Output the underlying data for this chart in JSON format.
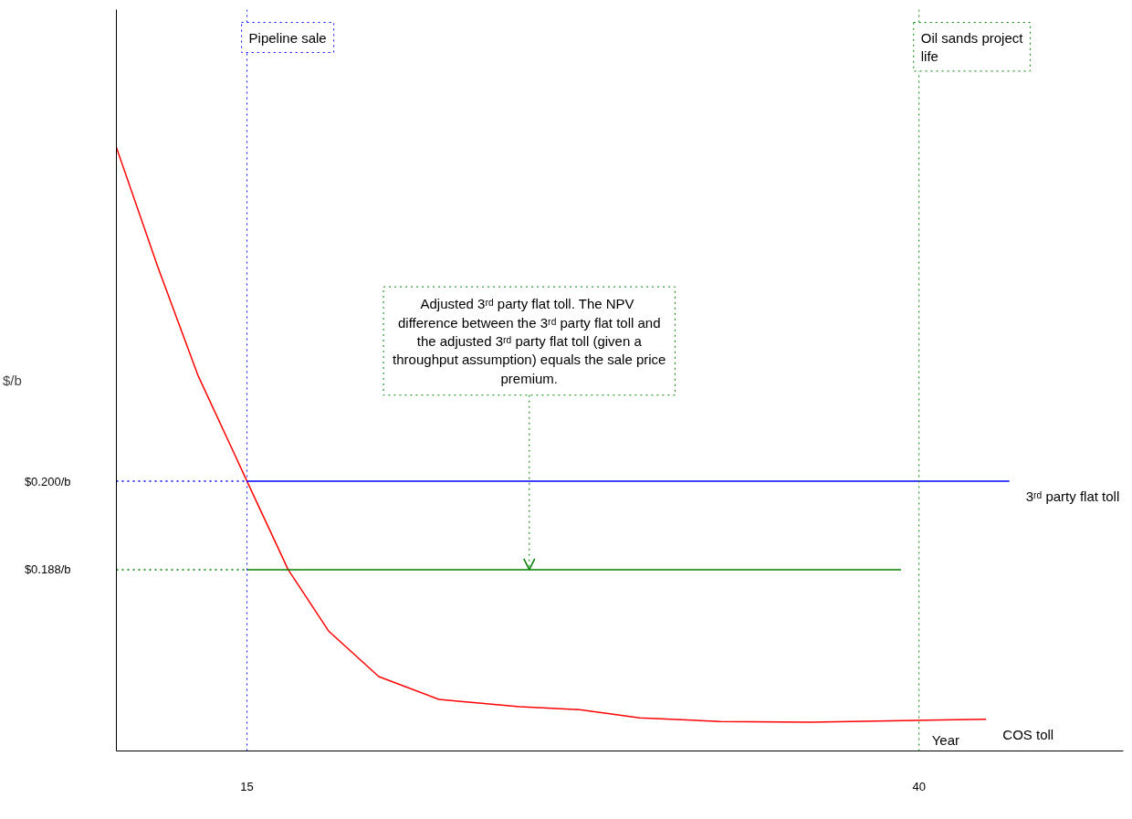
{
  "chart_data": {
    "type": "line",
    "ylabel": "$/b",
    "xlabel": "Year",
    "xlim": [
      10.14,
      47.6
    ],
    "ylim": [
      0.1634,
      0.264
    ],
    "xticks": [
      15,
      40
    ],
    "yticks": [
      {
        "value": 0.2,
        "label": "$0.200/b"
      },
      {
        "value": 0.188,
        "label": "$0.188/b"
      }
    ],
    "grid": false,
    "marker": "none",
    "series": [
      {
        "name": "COS toll",
        "color": "#ff0000",
        "x": [
          10.14,
          11.67,
          13.17,
          15,
          16.53,
          18.03,
          19.9,
          22.14,
          25.13,
          27.37,
          29.61,
          32.6,
          35.96,
          42.5
        ],
        "values": [
          0.2453,
          0.2292,
          0.2144,
          0.2,
          0.188,
          0.1797,
          0.1735,
          0.1704,
          0.1694,
          0.169,
          0.1679,
          0.1674,
          0.1673,
          0.1677
        ]
      },
      {
        "name": "3ʳᵈ party flat toll",
        "color": "#0000ff",
        "x": [
          15,
          43.36
        ],
        "values": [
          0.2,
          0.2
        ]
      },
      {
        "color": "#008000",
        "x": [
          15,
          39.33
        ],
        "values": [
          0.188,
          0.188
        ]
      },
      {
        "color": "#0000ff",
        "line_style": "dotted",
        "x": [
          10.14,
          15
        ],
        "values": [
          0.2,
          0.2
        ]
      },
      {
        "color": "#008000",
        "line_style": "dotted",
        "x": [
          10.14,
          15
        ],
        "values": [
          0.188,
          0.188
        ]
      }
    ],
    "ref_lines": [
      {
        "axis": "x",
        "value": 15,
        "label": "Pipeline sale",
        "color": "#0000ff",
        "line_style": "dotted"
      },
      {
        "axis": "x",
        "value": 40,
        "label": "Oil sands project life",
        "color": "#008000",
        "line_style": "dotted"
      }
    ],
    "annotations": [
      {
        "text": "Adjusted 3ʳᵈ party flat toll.  The NPV difference between the 3ʳᵈ party flat toll and the adjusted 3ʳᵈ party flat toll (given a throughput assumption) equals the sale price premium.",
        "x": 25.5,
        "y": 0.188
      }
    ]
  }
}
